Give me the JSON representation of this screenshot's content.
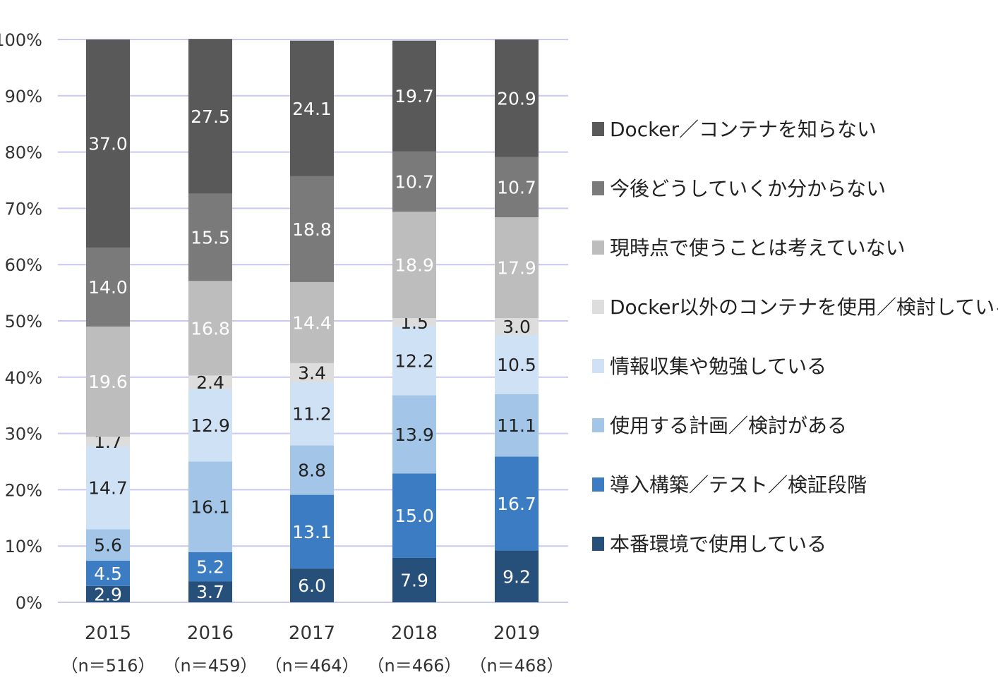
{
  "chart_data": {
    "type": "bar",
    "stacked": true,
    "ylim": [
      0,
      100
    ],
    "ytick_labels": [
      "0%",
      "10%",
      "20%",
      "30%",
      "40%",
      "50%",
      "60%",
      "70%",
      "80%",
      "90%",
      "100%"
    ],
    "grid": true,
    "legend_position": "right",
    "categories": [
      "2015",
      "2016",
      "2017",
      "2018",
      "2019"
    ],
    "category_sublabels": [
      "（n＝516）",
      "（n＝459）",
      "（n＝464）",
      "（n＝466）",
      "（n＝468）"
    ],
    "series": [
      {
        "name": "本番環境で使用している",
        "color": "#264f7a",
        "label_color": "#ffffff",
        "values": [
          2.9,
          3.7,
          6.0,
          7.9,
          9.2
        ]
      },
      {
        "name": "導入構築／テスト／検証段階",
        "color": "#3b7cc2",
        "label_color": "#ffffff",
        "values": [
          4.5,
          5.2,
          13.1,
          15.0,
          16.7
        ]
      },
      {
        "name": "使用する計画／検討がある",
        "color": "#a3c6e8",
        "label_color": "#222222",
        "values": [
          5.6,
          16.1,
          8.8,
          13.9,
          11.1
        ]
      },
      {
        "name": "情報収集や勉強している",
        "color": "#cfe1f4",
        "label_color": "#222222",
        "values": [
          14.7,
          12.9,
          11.2,
          12.2,
          10.5
        ]
      },
      {
        "name": "Docker以外のコンテナを使用／検討している",
        "color": "#dddddd",
        "label_color": "#222222",
        "values": [
          1.7,
          2.4,
          3.4,
          1.5,
          3.0
        ]
      },
      {
        "name": "現時点で使うことは考えていない",
        "color": "#bdbdbd",
        "label_color": "#ffffff",
        "values": [
          19.6,
          16.8,
          14.4,
          18.9,
          17.9
        ]
      },
      {
        "name": "今後どうしていくか分からない",
        "color": "#7a7a7a",
        "label_color": "#ffffff",
        "values": [
          14.0,
          15.5,
          18.8,
          10.7,
          10.7
        ]
      },
      {
        "name": "Docker／コンテナを知らない",
        "color": "#595959",
        "label_color": "#ffffff",
        "values": [
          37.0,
          27.5,
          24.1,
          19.7,
          20.9
        ]
      }
    ],
    "legend_order": [
      "Docker／コンテナを知らない",
      "今後どうしていくか分からない",
      "現時点で使うことは考えていない",
      "Docker以外のコンテナを使用／検討している",
      "情報収集や勉強している",
      "使用する計画／検討がある",
      "導入構築／テスト／検証段階",
      "本番環境で使用している"
    ],
    "grid_color": "#c8c8f0"
  }
}
